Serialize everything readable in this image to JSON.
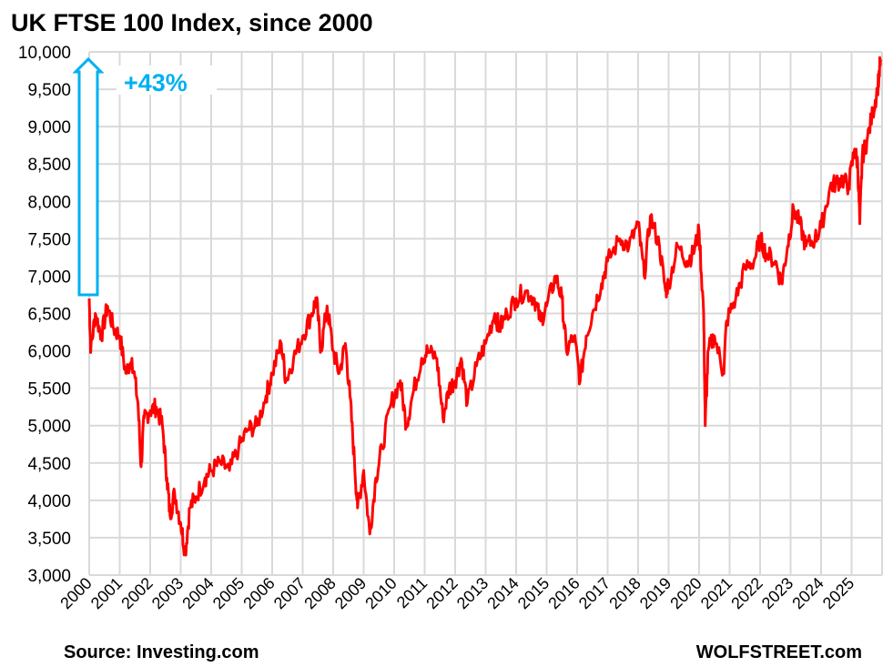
{
  "chart_data": {
    "type": "line",
    "title": "UK FTSE 100 Index, since 2000",
    "xlabel": "",
    "ylabel": "",
    "ylim": [
      3000,
      10000
    ],
    "xlim": [
      2000,
      2026
    ],
    "yticks": [
      "3,000",
      "3,500",
      "4,000",
      "4,500",
      "5,000",
      "5,500",
      "6,000",
      "6,500",
      "7,000",
      "7,500",
      "8,000",
      "8,500",
      "9,000",
      "9,500",
      "10,000"
    ],
    "ytick_values": [
      3000,
      3500,
      4000,
      4500,
      5000,
      5500,
      6000,
      6500,
      7000,
      7500,
      8000,
      8500,
      9000,
      9500,
      10000
    ],
    "xticks": [
      "2000",
      "2001",
      "2002",
      "2003",
      "2004",
      "2005",
      "2006",
      "2007",
      "2008",
      "2009",
      "2010",
      "2011",
      "2012",
      "2013",
      "2014",
      "2015",
      "2016",
      "2017",
      "2018",
      "2019",
      "2020",
      "2021",
      "2022",
      "2023",
      "2024",
      "2025"
    ],
    "grid": true,
    "series": [
      {
        "name": "FTSE 100",
        "color": "#FF0000",
        "x": [
          2000.0,
          2000.05,
          2000.2,
          2000.4,
          2000.6,
          2000.8,
          2001.0,
          2001.2,
          2001.4,
          2001.6,
          2001.7,
          2001.8,
          2002.0,
          2002.2,
          2002.4,
          2002.55,
          2002.65,
          2002.8,
          2003.0,
          2003.15,
          2003.3,
          2003.5,
          2003.8,
          2004.0,
          2004.3,
          2004.6,
          2004.9,
          2005.2,
          2005.5,
          2005.8,
          2006.0,
          2006.3,
          2006.45,
          2006.7,
          2007.0,
          2007.3,
          2007.45,
          2007.6,
          2007.8,
          2008.0,
          2008.2,
          2008.4,
          2008.55,
          2008.7,
          2008.8,
          2009.0,
          2009.2,
          2009.4,
          2009.6,
          2009.9,
          2010.2,
          2010.4,
          2010.6,
          2010.9,
          2011.1,
          2011.4,
          2011.6,
          2011.8,
          2012.0,
          2012.2,
          2012.4,
          2012.7,
          2013.0,
          2013.3,
          2013.45,
          2013.7,
          2014.0,
          2014.3,
          2014.6,
          2014.8,
          2015.0,
          2015.3,
          2015.5,
          2015.65,
          2015.9,
          2016.1,
          2016.3,
          2016.5,
          2016.8,
          2017.0,
          2017.4,
          2017.7,
          2018.0,
          2018.2,
          2018.4,
          2018.7,
          2018.9,
          2019.0,
          2019.3,
          2019.6,
          2019.8,
          2020.0,
          2020.15,
          2020.2,
          2020.3,
          2020.5,
          2020.8,
          2020.9,
          2021.2,
          2021.5,
          2021.8,
          2022.0,
          2022.2,
          2022.5,
          2022.7,
          2022.9,
          2023.1,
          2023.3,
          2023.5,
          2023.8,
          2024.0,
          2024.3,
          2024.5,
          2024.7,
          2024.9,
          2025.1,
          2025.2,
          2025.27,
          2025.35,
          2025.5,
          2025.7,
          2025.85,
          2025.95
        ],
        "y": [
          6700,
          6000,
          6500,
          6200,
          6600,
          6300,
          6200,
          5700,
          5900,
          5300,
          4450,
          5100,
          5200,
          5250,
          5000,
          4300,
          3800,
          4100,
          3700,
          3300,
          3900,
          4050,
          4300,
          4400,
          4500,
          4400,
          4700,
          4950,
          5000,
          5400,
          5700,
          6100,
          5600,
          5900,
          6200,
          6500,
          6700,
          6000,
          6600,
          6000,
          5700,
          6100,
          5400,
          4500,
          3900,
          4400,
          3550,
          4300,
          4700,
          5300,
          5600,
          5000,
          5400,
          5900,
          6000,
          5900,
          5100,
          5500,
          5600,
          5900,
          5300,
          5800,
          6100,
          6500,
          6300,
          6500,
          6700,
          6800,
          6700,
          6400,
          6600,
          7000,
          6700,
          6000,
          6200,
          5600,
          6200,
          6500,
          6900,
          7200,
          7500,
          7400,
          7700,
          7000,
          7800,
          7400,
          6800,
          6900,
          7400,
          7200,
          7300,
          7600,
          6500,
          5000,
          6000,
          6200,
          5700,
          6400,
          6700,
          7100,
          7200,
          7500,
          7300,
          7200,
          6900,
          7400,
          7900,
          7700,
          7400,
          7500,
          7650,
          8200,
          8250,
          8300,
          8200,
          8700,
          8500,
          7700,
          8600,
          8800,
          9200,
          9500,
          9900
        ]
      }
    ],
    "annotations": [
      {
        "text": "+43%",
        "color": "#00B0F0",
        "from": 6750,
        "to": 10000
      }
    ]
  },
  "footer": {
    "source": "Source: Investing.com",
    "brand": "WOLFSTREET.com"
  }
}
